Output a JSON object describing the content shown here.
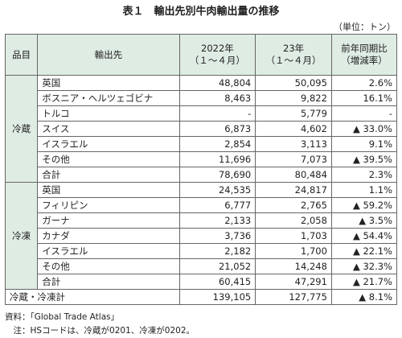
{
  "title": "表１　輸出先別牛肉輸出量の推移",
  "unit": "（単位：トン）",
  "table": {
    "header": [
      [
        "品目"
      ],
      [
        "輸出先"
      ],
      [
        "2022年",
        "（１～４月）"
      ],
      [
        "23年",
        "（１～４月）"
      ],
      [
        "前年同期比",
        "（増減率）"
      ]
    ],
    "groups": [
      {
        "label": "冷蔵",
        "rows": [
          [
            "英国",
            "48,804",
            "50,095",
            "2.6%"
          ],
          [
            "ボスニア・ヘルツェゴビナ",
            "8,463",
            "9,822",
            "16.1%"
          ],
          [
            "トルコ",
            "-",
            "5,779",
            "-"
          ],
          [
            "スイス",
            "6,873",
            "4,602",
            "▲ 33.0%"
          ],
          [
            "イスラエル",
            "2,854",
            "3,113",
            "9.1%"
          ],
          [
            "その他",
            "11,696",
            "7,073",
            "▲ 39.5%"
          ],
          [
            "合計",
            "78,690",
            "80,484",
            "2.3%"
          ]
        ]
      },
      {
        "label": "冷凍",
        "rows": [
          [
            "英国",
            "24,535",
            "24,817",
            "1.1%"
          ],
          [
            "フィリピン",
            "6,777",
            "2,765",
            "▲ 59.2%"
          ],
          [
            "ガーナ",
            "2,133",
            "2,058",
            "▲ 3.5%"
          ],
          [
            "カナダ",
            "3,736",
            "1,703",
            "▲ 54.4%"
          ],
          [
            "イスラエル",
            "2,182",
            "1,700",
            "▲ 22.1%"
          ],
          [
            "その他",
            "21,052",
            "14,248",
            "▲ 32.3%"
          ],
          [
            "合計",
            "60,415",
            "47,291",
            "▲ 21.7%"
          ]
        ]
      }
    ],
    "total": [
      "冷蔵・冷凍計",
      "139,105",
      "127,775",
      "▲ 8.1%"
    ]
  },
  "notes": [
    "資料：「Global Trade Atlas」",
    "　注：HSコードは、冷蔵が0201、冷凍が0202。"
  ]
}
